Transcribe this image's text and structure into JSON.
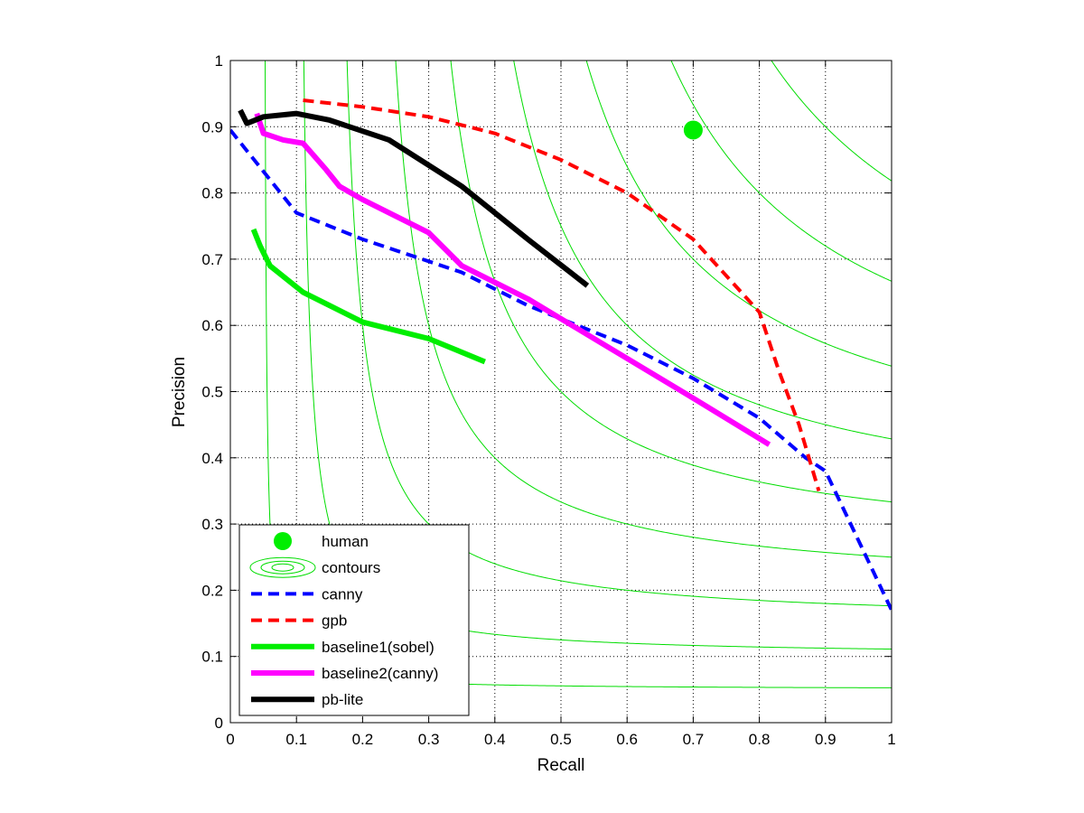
{
  "chart_data": {
    "type": "line",
    "xlabel": "Recall",
    "ylabel": "Precision",
    "xlim": [
      0,
      1
    ],
    "ylim": [
      0,
      1
    ],
    "xticks": [
      "0",
      "0.1",
      "0.2",
      "0.3",
      "0.4",
      "0.5",
      "0.6",
      "0.7",
      "0.8",
      "0.9",
      "1"
    ],
    "yticks": [
      "0",
      "0.1",
      "0.2",
      "0.3",
      "0.4",
      "0.5",
      "0.6",
      "0.7",
      "0.8",
      "0.9",
      "1"
    ],
    "grid": true,
    "legend_position": "bottom-left",
    "iso_f_contours": [
      0.1,
      0.2,
      0.3,
      0.4,
      0.5,
      0.6,
      0.7,
      0.8,
      0.9
    ],
    "series": [
      {
        "name": "human",
        "style": "marker",
        "color": "#00ee00",
        "x": [
          0.7
        ],
        "y": [
          0.895
        ]
      },
      {
        "name": "contours",
        "style": "contour",
        "color": "#00dd00"
      },
      {
        "name": "canny",
        "style": "dashed",
        "color": "#0000ff",
        "x": [
          0.0,
          0.1,
          0.2,
          0.35,
          0.45,
          0.6,
          0.7,
          0.8,
          0.87,
          0.9,
          1.0
        ],
        "y": [
          0.895,
          0.77,
          0.73,
          0.68,
          0.63,
          0.57,
          0.52,
          0.46,
          0.4,
          0.38,
          0.17
        ]
      },
      {
        "name": "gpb",
        "style": "dashed",
        "color": "#ff0000",
        "x": [
          0.11,
          0.2,
          0.3,
          0.4,
          0.5,
          0.6,
          0.7,
          0.8,
          0.83,
          0.86,
          0.89
        ],
        "y": [
          0.94,
          0.93,
          0.915,
          0.89,
          0.85,
          0.8,
          0.73,
          0.62,
          0.53,
          0.45,
          0.35
        ]
      },
      {
        "name": "baseline1(sobel)",
        "style": "solid",
        "color": "#00ee00",
        "x": [
          0.035,
          0.045,
          0.06,
          0.11,
          0.15,
          0.2,
          0.3,
          0.385
        ],
        "y": [
          0.745,
          0.72,
          0.69,
          0.65,
          0.63,
          0.605,
          0.58,
          0.545
        ]
      },
      {
        "name": "baseline2(canny)",
        "style": "solid",
        "color": "#ff00ff",
        "x": [
          0.04,
          0.05,
          0.08,
          0.11,
          0.145,
          0.165,
          0.2,
          0.3,
          0.35,
          0.45,
          0.6,
          0.7,
          0.815
        ],
        "y": [
          0.92,
          0.89,
          0.88,
          0.875,
          0.835,
          0.81,
          0.79,
          0.74,
          0.69,
          0.64,
          0.55,
          0.49,
          0.42
        ]
      },
      {
        "name": "pb-lite",
        "style": "solid",
        "color": "#000000",
        "x": [
          0.015,
          0.025,
          0.05,
          0.1,
          0.15,
          0.24,
          0.35,
          0.45,
          0.54
        ],
        "y": [
          0.925,
          0.905,
          0.915,
          0.92,
          0.91,
          0.88,
          0.81,
          0.73,
          0.66
        ]
      }
    ]
  }
}
